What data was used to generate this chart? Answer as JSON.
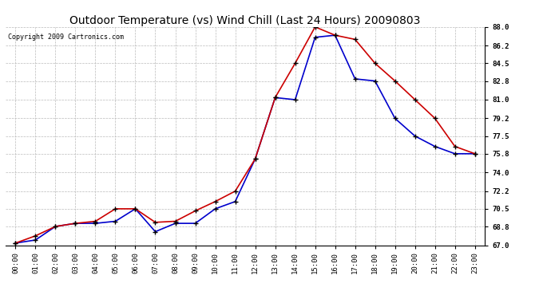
{
  "title": "Outdoor Temperature (vs) Wind Chill (Last 24 Hours) 20090803",
  "copyright": "Copyright 2009 Cartronics.com",
  "hours": [
    "00:00",
    "01:00",
    "02:00",
    "03:00",
    "04:00",
    "05:00",
    "06:00",
    "07:00",
    "08:00",
    "09:00",
    "10:00",
    "11:00",
    "12:00",
    "13:00",
    "14:00",
    "15:00",
    "16:00",
    "17:00",
    "18:00",
    "19:00",
    "20:00",
    "21:00",
    "22:00",
    "23:00"
  ],
  "outdoor_temp": [
    67.2,
    67.9,
    68.8,
    69.1,
    69.3,
    70.5,
    70.5,
    69.2,
    69.3,
    70.3,
    71.2,
    72.2,
    75.3,
    81.2,
    84.5,
    88.0,
    87.2,
    86.8,
    84.5,
    82.8,
    81.0,
    79.2,
    76.5,
    75.8
  ],
  "wind_chill": [
    67.2,
    67.5,
    68.8,
    69.1,
    69.1,
    69.3,
    70.5,
    68.3,
    69.1,
    69.1,
    70.5,
    71.2,
    75.3,
    81.2,
    81.0,
    87.0,
    87.2,
    83.0,
    82.8,
    79.2,
    77.5,
    76.5,
    75.8,
    75.8
  ],
  "temp_color": "#cc0000",
  "wind_chill_color": "#0000cc",
  "marker": "+",
  "marker_color": "black",
  "marker_size": 5,
  "ylim_min": 67.0,
  "ylim_max": 88.0,
  "yticks": [
    67.0,
    68.8,
    70.5,
    72.2,
    74.0,
    75.8,
    77.5,
    79.2,
    81.0,
    82.8,
    84.5,
    86.2,
    88.0
  ],
  "background_color": "#ffffff",
  "plot_bg_color": "#ffffff",
  "grid_color": "#bbbbbb",
  "title_fontsize": 10,
  "copyright_fontsize": 6,
  "tick_fontsize": 6.5,
  "line_width": 1.2,
  "marker_linewidth": 1.0
}
